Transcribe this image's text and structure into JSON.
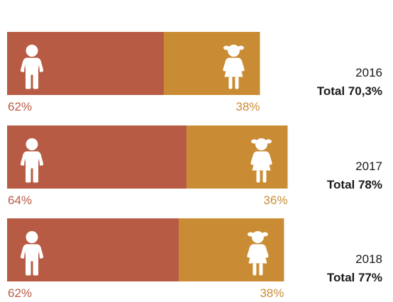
{
  "chart_data": {
    "type": "bar",
    "orientation": "horizontal",
    "stacked": true,
    "series_colors": {
      "boys": "#B85B45",
      "girls": "#C98C35"
    },
    "icons": {
      "boys": "boy-icon",
      "girls": "girl-icon"
    },
    "rows": [
      {
        "year": "2016",
        "total_label": "Total 70,3%",
        "total": 70.3,
        "boys_pct": 62,
        "girls_pct": 38,
        "boys_label": "62%",
        "girls_label": "38%"
      },
      {
        "year": "2017",
        "total_label": "Total 78%",
        "total": 78,
        "boys_pct": 64,
        "girls_pct": 36,
        "boys_label": "64%",
        "girls_label": "36%"
      },
      {
        "year": "2018",
        "total_label": "Total 77%",
        "total": 77,
        "boys_pct": 62,
        "girls_pct": 38,
        "boys_label": "62%",
        "girls_label": "38%"
      }
    ]
  }
}
